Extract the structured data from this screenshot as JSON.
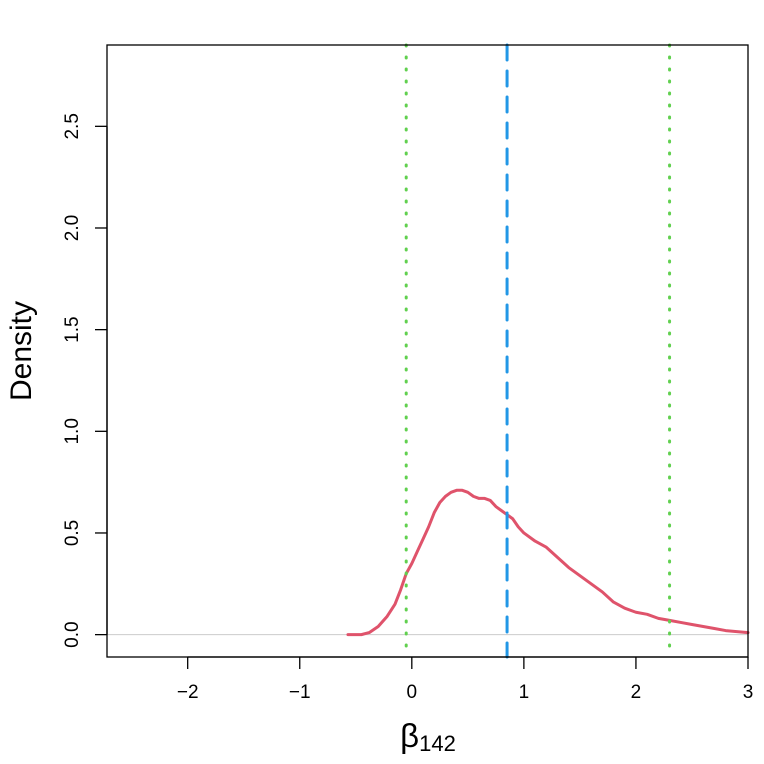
{
  "chart_data": {
    "type": "line",
    "title": "",
    "xlabel_symbol": "β",
    "xlabel_subscript": "142",
    "ylabel": "Density",
    "xlim": [
      -2.72,
      3.0
    ],
    "ylim": [
      -0.11,
      2.9
    ],
    "x_ticks": [
      -2,
      -1,
      0,
      1,
      2,
      3
    ],
    "x_tick_labels": [
      "−2",
      "−1",
      "0",
      "1",
      "2",
      "3"
    ],
    "y_ticks": [
      0.0,
      0.5,
      1.0,
      1.5,
      2.0,
      2.5
    ],
    "y_tick_labels": [
      "0.0",
      "0.5",
      "1.0",
      "1.5",
      "2.0",
      "2.5"
    ],
    "grid": false,
    "baseline_y": 0,
    "series": [
      {
        "color": "#DF536B",
        "x": [
          -0.57,
          -0.45,
          -0.38,
          -0.3,
          -0.22,
          -0.15,
          -0.1,
          -0.05,
          0.0,
          0.05,
          0.1,
          0.15,
          0.2,
          0.25,
          0.3,
          0.35,
          0.4,
          0.45,
          0.5,
          0.55,
          0.6,
          0.65,
          0.7,
          0.75,
          0.8,
          0.85,
          0.9,
          0.95,
          1.0,
          1.1,
          1.2,
          1.3,
          1.4,
          1.5,
          1.6,
          1.7,
          1.8,
          1.9,
          2.0,
          2.1,
          2.2,
          2.3,
          2.4,
          2.5,
          2.6,
          2.7,
          2.8,
          2.9,
          3.0
        ],
        "y": [
          0.0,
          0.0,
          0.01,
          0.04,
          0.09,
          0.15,
          0.22,
          0.3,
          0.35,
          0.41,
          0.47,
          0.53,
          0.6,
          0.65,
          0.68,
          0.7,
          0.71,
          0.71,
          0.7,
          0.68,
          0.67,
          0.67,
          0.66,
          0.63,
          0.61,
          0.59,
          0.57,
          0.53,
          0.5,
          0.46,
          0.43,
          0.38,
          0.33,
          0.29,
          0.25,
          0.21,
          0.16,
          0.13,
          0.11,
          0.1,
          0.08,
          0.07,
          0.06,
          0.05,
          0.04,
          0.03,
          0.02,
          0.015,
          0.01
        ]
      }
    ],
    "vlines": [
      {
        "x": 0.85,
        "style": "dashed",
        "color": "#2297E6"
      },
      {
        "x": -0.05,
        "style": "dotted",
        "color": "#61D04F"
      },
      {
        "x": 2.3,
        "style": "dotted",
        "color": "#61D04F"
      }
    ]
  }
}
